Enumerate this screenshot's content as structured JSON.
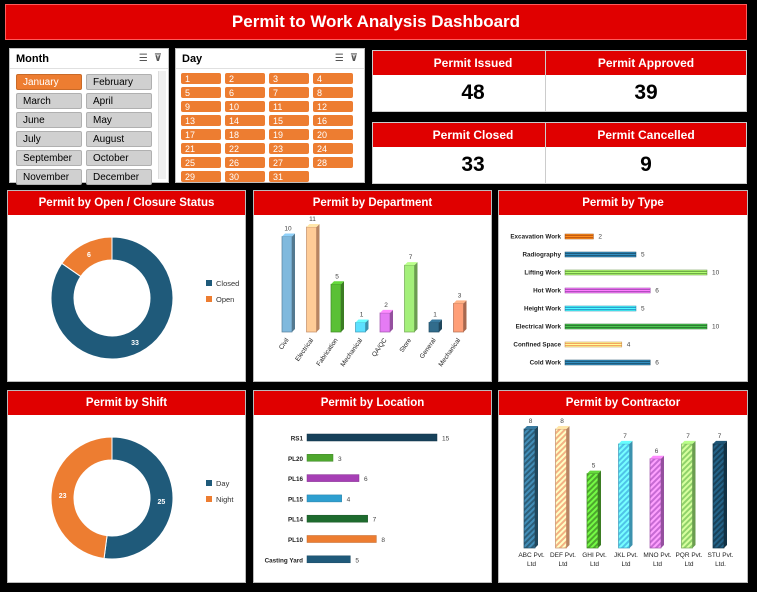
{
  "title": "Permit to Work Analysis Dashboard",
  "colors": {
    "accent": "#e00000",
    "orange": "#ed7d31",
    "navy": "#1f5a7a",
    "green": "#4ea72e"
  },
  "month_slicer": {
    "label": "Month",
    "items": [
      "January",
      "February",
      "March",
      "April",
      "June",
      "May",
      "July",
      "August",
      "September",
      "October",
      "November",
      "December"
    ],
    "selected": "January"
  },
  "day_slicer": {
    "label": "Day",
    "items": [
      "1",
      "2",
      "3",
      "4",
      "5",
      "6",
      "7",
      "8",
      "9",
      "10",
      "11",
      "12",
      "13",
      "14",
      "15",
      "16",
      "17",
      "18",
      "19",
      "20",
      "21",
      "22",
      "23",
      "24",
      "25",
      "26",
      "27",
      "28",
      "29",
      "30",
      "31"
    ]
  },
  "kpis": {
    "issued": {
      "label": "Permit Issued",
      "value": "48"
    },
    "approved": {
      "label": "Permit Approved",
      "value": "39"
    },
    "closed": {
      "label": "Permit Closed",
      "value": "33"
    },
    "cancelled": {
      "label": "Permit Cancelled",
      "value": "9"
    }
  },
  "panels": {
    "status": "Permit by Open / Closure Status",
    "department": "Permit by Department",
    "type": "Permit by Type",
    "shift": "Permit by Shift",
    "location": "Permit by Location",
    "contractor": "Permit by Contractor"
  },
  "chart_data": [
    {
      "id": "status",
      "type": "pie",
      "donut": true,
      "labels": [
        "Closed",
        "Open"
      ],
      "values": [
        33,
        6
      ],
      "colors": [
        "#1f5a7a",
        "#ed7d31"
      ],
      "legend": "right"
    },
    {
      "id": "department",
      "type": "bar",
      "categories": [
        "Civil",
        "Electrical",
        "Fabrication",
        "Mechanical",
        "QA/QC",
        "Store",
        "General",
        "Mechanical"
      ],
      "values": [
        10,
        11,
        5,
        1,
        2,
        7,
        1,
        3
      ],
      "colors": [
        "#6fa1c0",
        "#f4b183",
        "#4ea72e",
        "#4fc3e8",
        "#c76bd4",
        "#8fd16a",
        "#2b5e7a",
        "#e08a68"
      ]
    },
    {
      "id": "type",
      "type": "bar",
      "orientation": "horizontal",
      "categories": [
        "Excavation Work",
        "Radiography",
        "Lifting Work",
        "Hot Work",
        "Height Work",
        "Electrical Work",
        "Confined Space",
        "Cold Work"
      ],
      "values": [
        2,
        5,
        10,
        6,
        5,
        10,
        4,
        6
      ],
      "colors": [
        "#c55a11",
        "#1f5a7a",
        "#70ad47",
        "#b04fbf",
        "#2e9fd0",
        "#2e7d32",
        "#f4a460",
        "#1f5a7a"
      ],
      "xlim": [
        0,
        10
      ]
    },
    {
      "id": "shift",
      "type": "pie",
      "donut": true,
      "labels": [
        "Day",
        "Night"
      ],
      "values": [
        25,
        23
      ],
      "colors": [
        "#1f5a7a",
        "#ed7d31"
      ],
      "legend": "right"
    },
    {
      "id": "location",
      "type": "bar",
      "orientation": "horizontal",
      "categories": [
        "RS1",
        "PL20",
        "PL16",
        "PL15",
        "PL14",
        "PL10",
        "Casting Yard"
      ],
      "values": [
        15,
        3,
        6,
        4,
        7,
        8,
        5
      ],
      "colors": [
        "#17415a",
        "#4ea72e",
        "#a63fb5",
        "#2e9fd0",
        "#1e6b2e",
        "#ed7d31",
        "#1f5a7a"
      ],
      "xlim": [
        0,
        15
      ]
    },
    {
      "id": "contractor",
      "type": "bar",
      "categories": [
        "ABC Pvt. Ltd",
        "DEF Pvt. Ltd",
        "GHI Pvt. Ltd",
        "JKL Pvt. Ltd",
        "MNO Pvt. Ltd",
        "PQR Pvt. Ltd",
        "STU Pvt. Ltd."
      ],
      "values": [
        8,
        8,
        5,
        7,
        6,
        7,
        7
      ],
      "colors": [
        "#2b5e7a",
        "#f4b183",
        "#4ea72e",
        "#4fc3e8",
        "#c76bd4",
        "#8fd16a",
        "#17415a"
      ]
    }
  ]
}
